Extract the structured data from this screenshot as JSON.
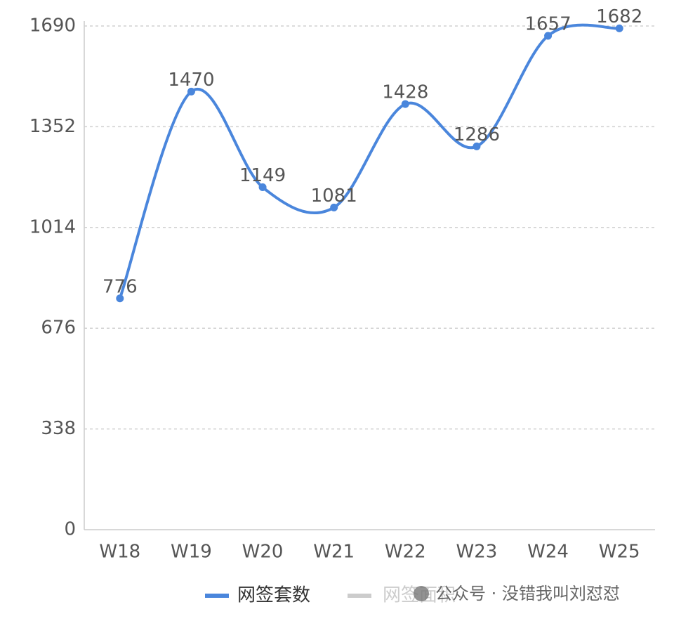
{
  "chart_data": {
    "type": "line",
    "categories": [
      "W18",
      "W19",
      "W20",
      "W21",
      "W22",
      "W23",
      "W24",
      "W25"
    ],
    "series": [
      {
        "name": "网签套数",
        "color": "#4a86dc",
        "values": [
          776,
          1470,
          1149,
          1081,
          1428,
          1286,
          1657,
          1682
        ]
      }
    ],
    "inactive_legend": [
      {
        "name": "网签面积",
        "color": "#cccccc"
      }
    ],
    "ylim": [
      0,
      1690
    ],
    "yticks": [
      0,
      338,
      676,
      1014,
      1352,
      1690
    ],
    "grid": true,
    "smooth": true,
    "legend": "bottom"
  },
  "watermark": "公众号 · 没错我叫刘怼怼"
}
